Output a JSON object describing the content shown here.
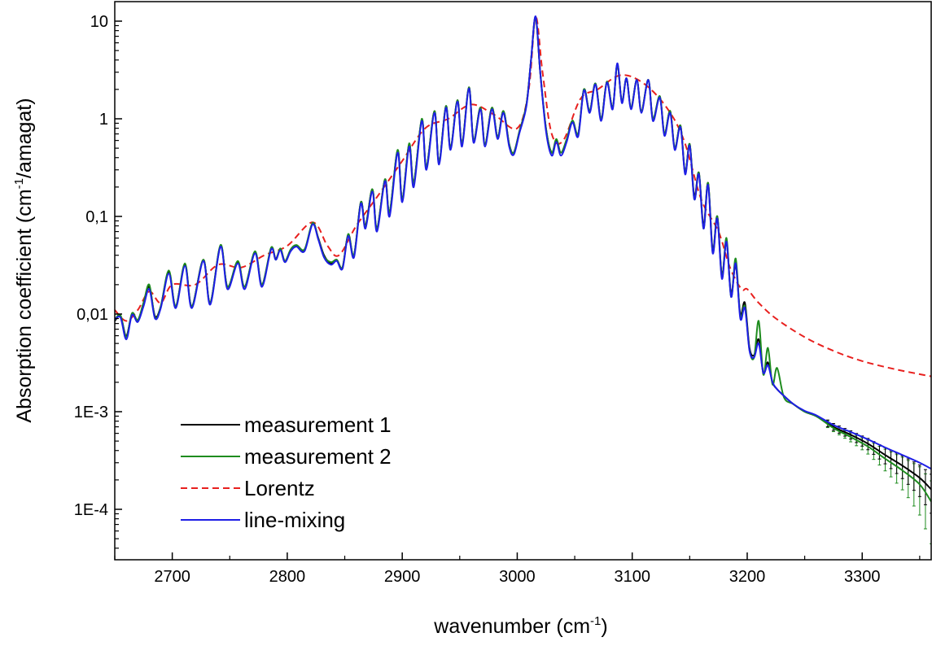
{
  "chart_data": {
    "type": "line",
    "title": "",
    "xlabel": "wavenumber (cm",
    "xlabel_sup": "-1",
    "xlabel_end": ")",
    "ylabel": "Absorption coefficient (cm",
    "ylabel_sup": "-1",
    "ylabel_end": "/amagat)",
    "xlim": [
      2650,
      3360
    ],
    "ylim": [
      4e-05,
      13
    ],
    "yscale": "log",
    "grid": false,
    "legend_position": "bottom-left",
    "x_ticks": [
      {
        "value": 2700,
        "label": "2700"
      },
      {
        "value": 2800,
        "label": "2800"
      },
      {
        "value": 2900,
        "label": "2900"
      },
      {
        "value": 3000,
        "label": "3000"
      },
      {
        "value": 3100,
        "label": "3100"
      },
      {
        "value": 3200,
        "label": "3200"
      },
      {
        "value": 3300,
        "label": "3300"
      }
    ],
    "y_ticks": [
      {
        "value": 10,
        "label": "10"
      },
      {
        "value": 1,
        "label": "1"
      },
      {
        "value": 0.1,
        "label": "0,1"
      },
      {
        "value": 0.01,
        "label": "0,01"
      },
      {
        "value": 0.001,
        "label": "1E-3"
      },
      {
        "value": 0.0001,
        "label": "1E-4"
      }
    ],
    "series": [
      {
        "name": "measurement 1",
        "color": "#000000",
        "dash": "solid",
        "x": [
          2650,
          2655,
          2660,
          2665,
          2670,
          2675,
          2680,
          2685,
          2690,
          2697,
          2703,
          2711,
          2717,
          2727,
          2733,
          2742,
          2748,
          2757,
          2763,
          2772,
          2778,
          2786,
          2790,
          2794,
          2798,
          2803,
          2808,
          2815,
          2822,
          2827,
          2832,
          2838,
          2843,
          2848,
          2853,
          2858,
          2864,
          2868,
          2874,
          2878,
          2885,
          2889,
          2896,
          2900,
          2906,
          2910,
          2917,
          2921,
          2928,
          2932,
          2938,
          2942,
          2948,
          2952,
          2958,
          2962,
          2968,
          2972,
          2978,
          2983,
          2988,
          2993,
          2997,
          3002,
          3008,
          3012,
          3016,
          3020,
          3025,
          3030,
          3034,
          3038,
          3043,
          3048,
          3053,
          3058,
          3063,
          3068,
          3073,
          3078,
          3083,
          3087,
          3091,
          3095,
          3099,
          3104,
          3108,
          3114,
          3118,
          3124,
          3128,
          3133,
          3137,
          3142,
          3146,
          3150,
          3154,
          3158,
          3162,
          3166,
          3170,
          3174,
          3178,
          3182,
          3186,
          3190,
          3194,
          3198,
          3202,
          3206,
          3210,
          3214,
          3218,
          3222,
          3226,
          3232,
          3240,
          3250,
          3260,
          3275,
          3290,
          3305,
          3320,
          3335,
          3350,
          3360
        ],
        "y": [
          0.0085,
          0.0095,
          0.006,
          0.01,
          0.0085,
          0.013,
          0.019,
          0.0095,
          0.012,
          0.027,
          0.012,
          0.032,
          0.012,
          0.036,
          0.013,
          0.05,
          0.019,
          0.034,
          0.019,
          0.043,
          0.02,
          0.047,
          0.037,
          0.046,
          0.035,
          0.045,
          0.05,
          0.045,
          0.085,
          0.06,
          0.04,
          0.033,
          0.036,
          0.03,
          0.065,
          0.04,
          0.14,
          0.08,
          0.19,
          0.075,
          0.24,
          0.11,
          0.47,
          0.15,
          0.55,
          0.22,
          0.98,
          0.32,
          1.2,
          0.36,
          1.35,
          0.5,
          1.55,
          0.55,
          2.1,
          0.6,
          1.3,
          0.55,
          1.3,
          0.65,
          1.2,
          0.55,
          0.45,
          0.75,
          1.4,
          4,
          11,
          3,
          0.8,
          0.45,
          0.6,
          0.45,
          0.6,
          0.95,
          0.7,
          2,
          1.2,
          2.3,
          1,
          2.4,
          1.3,
          3.6,
          1.5,
          2.6,
          1.3,
          2.5,
          1.2,
          2.5,
          1,
          1.7,
          0.7,
          1.2,
          0.5,
          0.85,
          0.28,
          0.55,
          0.16,
          0.28,
          0.08,
          0.22,
          0.045,
          0.1,
          0.025,
          0.055,
          0.016,
          0.032,
          0.01,
          0.013,
          0.0045,
          0.0038,
          0.0055,
          0.0025,
          0.0032,
          0.002,
          0.0017,
          0.00145,
          0.0012,
          0.001,
          0.0009,
          0.0007,
          0.00058,
          0.00047,
          0.00036,
          0.00028,
          0.00021,
          0.00016
        ]
      },
      {
        "name": "measurement 2",
        "color": "#1e8c1e",
        "dash": "solid",
        "x": [
          2650,
          2655,
          2660,
          2665,
          2670,
          2675,
          2680,
          2685,
          2690,
          2697,
          2703,
          2711,
          2717,
          2727,
          2733,
          2742,
          2748,
          2757,
          2763,
          2772,
          2778,
          2786,
          2790,
          2794,
          2798,
          2803,
          2808,
          2815,
          2822,
          2827,
          2832,
          2838,
          2843,
          2848,
          2853,
          2858,
          2864,
          2868,
          2874,
          2878,
          2885,
          2889,
          2896,
          2900,
          2906,
          2910,
          2917,
          2921,
          2928,
          2932,
          2938,
          2942,
          2948,
          2952,
          2958,
          2962,
          2968,
          2972,
          2978,
          2983,
          2988,
          2993,
          2997,
          3002,
          3008,
          3012,
          3016,
          3020,
          3025,
          3030,
          3034,
          3038,
          3043,
          3048,
          3053,
          3058,
          3063,
          3068,
          3073,
          3078,
          3083,
          3087,
          3091,
          3095,
          3099,
          3104,
          3108,
          3114,
          3118,
          3124,
          3128,
          3133,
          3137,
          3142,
          3146,
          3150,
          3154,
          3158,
          3162,
          3166,
          3170,
          3174,
          3178,
          3182,
          3186,
          3190,
          3194,
          3198,
          3202,
          3206,
          3210,
          3214,
          3218,
          3222,
          3226,
          3232,
          3240,
          3250,
          3260,
          3275,
          3290,
          3305,
          3320,
          3335,
          3350,
          3360
        ],
        "y": [
          0.0087,
          0.0097,
          0.0058,
          0.0102,
          0.0087,
          0.013,
          0.02,
          0.0092,
          0.012,
          0.028,
          0.012,
          0.033,
          0.012,
          0.036,
          0.013,
          0.051,
          0.019,
          0.035,
          0.019,
          0.044,
          0.02,
          0.048,
          0.036,
          0.047,
          0.035,
          0.046,
          0.051,
          0.046,
          0.086,
          0.059,
          0.039,
          0.034,
          0.036,
          0.03,
          0.066,
          0.04,
          0.14,
          0.078,
          0.19,
          0.074,
          0.24,
          0.11,
          0.48,
          0.15,
          0.56,
          0.22,
          1,
          0.32,
          1.2,
          0.36,
          1.35,
          0.5,
          1.55,
          0.55,
          2.1,
          0.6,
          1.3,
          0.55,
          1.3,
          0.65,
          1.2,
          0.55,
          0.45,
          0.75,
          1.4,
          4,
          11,
          3,
          0.8,
          0.45,
          0.62,
          0.45,
          0.62,
          0.96,
          0.7,
          2,
          1.2,
          2.3,
          1,
          2.4,
          1.3,
          3.6,
          1.5,
          2.6,
          1.3,
          2.5,
          1.2,
          2.5,
          1,
          1.7,
          0.7,
          1.2,
          0.5,
          0.85,
          0.28,
          0.55,
          0.15,
          0.28,
          0.075,
          0.22,
          0.043,
          0.1,
          0.024,
          0.06,
          0.015,
          0.037,
          0.0095,
          0.012,
          0.0043,
          0.0036,
          0.0085,
          0.0024,
          0.0045,
          0.0019,
          0.0028,
          0.0014,
          0.0012,
          0.001,
          0.0009,
          0.00068,
          0.00055,
          0.00044,
          0.00033,
          0.00025,
          0.00018,
          0.00012
        ]
      },
      {
        "name": "Lorentz",
        "color": "#e8201e",
        "dash": "dashed",
        "x": [
          2650,
          2660,
          2670,
          2680,
          2690,
          2700,
          2720,
          2740,
          2760,
          2780,
          2800,
          2822,
          2835,
          2845,
          2860,
          2880,
          2900,
          2920,
          2940,
          2960,
          2980,
          3000,
          3010,
          3016,
          3022,
          3030,
          3040,
          3055,
          3070,
          3090,
          3110,
          3130,
          3145,
          3160,
          3175,
          3185,
          3195,
          3200,
          3210,
          3225,
          3250,
          3275,
          3300,
          3330,
          3360
        ],
        "y": [
          0.011,
          0.0085,
          0.011,
          0.017,
          0.013,
          0.02,
          0.02,
          0.032,
          0.03,
          0.04,
          0.05,
          0.087,
          0.05,
          0.04,
          0.08,
          0.17,
          0.37,
          0.8,
          1.0,
          1.4,
          1.1,
          0.8,
          2,
          11,
          3,
          0.7,
          0.6,
          1.6,
          2,
          2.8,
          2.3,
          1.3,
          0.6,
          0.15,
          0.07,
          0.03,
          0.018,
          0.018,
          0.013,
          0.009,
          0.0058,
          0.0042,
          0.0033,
          0.0027,
          0.0023
        ]
      },
      {
        "name": "line-mixing",
        "color": "#1e1ee6",
        "dash": "solid",
        "x": [
          2650,
          2655,
          2660,
          2665,
          2670,
          2675,
          2680,
          2685,
          2690,
          2697,
          2703,
          2711,
          2717,
          2727,
          2733,
          2742,
          2748,
          2757,
          2763,
          2772,
          2778,
          2786,
          2790,
          2794,
          2798,
          2803,
          2808,
          2815,
          2822,
          2827,
          2832,
          2838,
          2843,
          2848,
          2853,
          2858,
          2864,
          2868,
          2874,
          2878,
          2885,
          2889,
          2896,
          2900,
          2906,
          2910,
          2917,
          2921,
          2928,
          2932,
          2938,
          2942,
          2948,
          2952,
          2958,
          2962,
          2968,
          2972,
          2978,
          2983,
          2988,
          2993,
          2997,
          3002,
          3008,
          3012,
          3016,
          3020,
          3025,
          3030,
          3034,
          3038,
          3043,
          3048,
          3053,
          3058,
          3063,
          3068,
          3073,
          3078,
          3083,
          3087,
          3091,
          3095,
          3099,
          3104,
          3108,
          3114,
          3118,
          3124,
          3128,
          3133,
          3137,
          3142,
          3146,
          3150,
          3154,
          3158,
          3162,
          3166,
          3170,
          3174,
          3178,
          3182,
          3186,
          3190,
          3194,
          3198,
          3202,
          3206,
          3210,
          3214,
          3218,
          3222,
          3226,
          3232,
          3240,
          3250,
          3260,
          3275,
          3290,
          3305,
          3320,
          3335,
          3350,
          3360
        ],
        "y": [
          0.0088,
          0.0092,
          0.0055,
          0.0098,
          0.0083,
          0.012,
          0.018,
          0.009,
          0.0115,
          0.026,
          0.0115,
          0.031,
          0.0115,
          0.035,
          0.0125,
          0.049,
          0.018,
          0.033,
          0.018,
          0.042,
          0.019,
          0.046,
          0.036,
          0.045,
          0.034,
          0.044,
          0.049,
          0.044,
          0.083,
          0.058,
          0.038,
          0.032,
          0.035,
          0.029,
          0.063,
          0.038,
          0.135,
          0.075,
          0.18,
          0.07,
          0.23,
          0.1,
          0.45,
          0.14,
          0.52,
          0.2,
          0.95,
          0.3,
          1.15,
          0.34,
          1.3,
          0.48,
          1.5,
          0.52,
          2.05,
          0.57,
          1.25,
          0.52,
          1.25,
          0.62,
          1.15,
          0.52,
          0.43,
          0.72,
          1.35,
          4,
          11.2,
          3,
          0.75,
          0.42,
          0.58,
          0.42,
          0.58,
          0.92,
          0.66,
          1.95,
          1.15,
          2.25,
          0.95,
          2.35,
          1.25,
          3.7,
          1.45,
          2.6,
          1.25,
          2.5,
          1.15,
          2.5,
          0.95,
          1.65,
          0.67,
          1.15,
          0.48,
          0.82,
          0.27,
          0.53,
          0.15,
          0.27,
          0.075,
          0.21,
          0.042,
          0.095,
          0.023,
          0.055,
          0.015,
          0.033,
          0.009,
          0.0115,
          0.0042,
          0.0036,
          0.005,
          0.0025,
          0.003,
          0.002,
          0.0017,
          0.00145,
          0.0012,
          0.00102,
          0.00092,
          0.00073,
          0.00062,
          0.00052,
          0.00043,
          0.00036,
          0.0003,
          0.00026
        ]
      }
    ],
    "error_bars": {
      "color_1": "#000000",
      "color_2": "#1e8c1e",
      "x_start": 3270,
      "x_step": 5,
      "x_end": 3360
    }
  }
}
